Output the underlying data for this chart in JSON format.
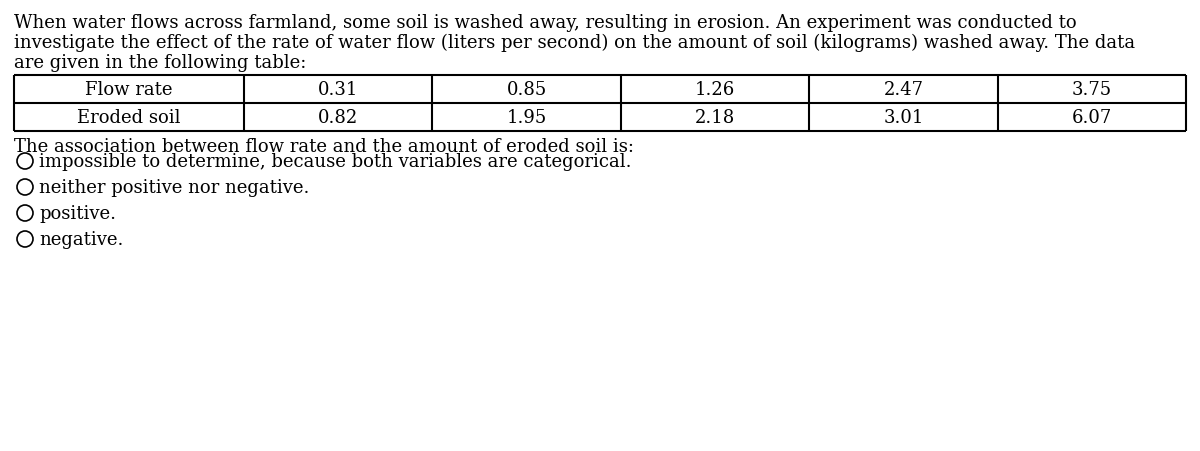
{
  "paragraph_lines": [
    "When water flows across farmland, some soil is washed away, resulting in erosion. An experiment was conducted to",
    "investigate the effect of the rate of water flow (liters per second) on the amount of soil (kilograms) washed away. The data",
    "are given in the following table:"
  ],
  "table": {
    "row1_label": "Flow rate",
    "row2_label": "Eroded soil",
    "values_row1": [
      "0.31",
      "0.85",
      "1.26",
      "2.47",
      "3.75"
    ],
    "values_row2": [
      "0.82",
      "1.95",
      "2.18",
      "3.01",
      "6.07"
    ]
  },
  "question_text": "The association between flow rate and the amount of eroded soil is:",
  "options": [
    "impossible to determine, because both variables are categorical.",
    "neither positive nor negative.",
    "positive.",
    "negative."
  ],
  "bg_color": "#ffffff",
  "text_color": "#000000",
  "font_size": 13.0,
  "table_font_size": 13.0,
  "fig_width": 12.0,
  "fig_height": 4.52,
  "dpi": 100
}
